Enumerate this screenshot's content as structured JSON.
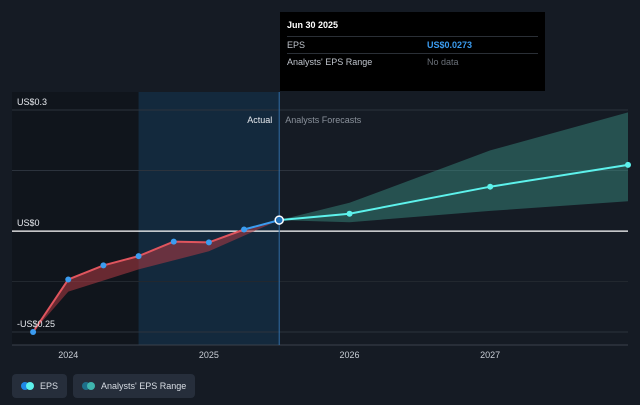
{
  "tooltip": {
    "date": "Jun 30 2025",
    "rows": [
      {
        "label": "EPS",
        "value": "US$0.0273"
      },
      {
        "label": "Analysts' EPS Range",
        "value": "No data"
      }
    ]
  },
  "legend": {
    "eps_label": "EPS",
    "range_label": "Analysts' EPS Range",
    "eps_colors": [
      "#1e88e5",
      "#5df2ec"
    ],
    "range_colors": [
      "#1e6f8a",
      "#3fb5ae"
    ]
  },
  "colors": {
    "actual_line": "#e0555e",
    "actual_recent_line": "#3b9cf0",
    "forecast_line": "#5df2ec",
    "forecast_band": "#3f9e90",
    "actual_band": "#b03a44",
    "highlight": "#163a5a"
  },
  "chart_data": {
    "type": "line",
    "section_labels": {
      "actual": "Actual",
      "forecast": "Analysts Forecasts"
    },
    "y_ticks": [
      {
        "value": 0.3,
        "label": "US$0.3"
      },
      {
        "value": 0.0,
        "label": "US$0"
      },
      {
        "value": -0.25,
        "label": "-US$0.25"
      }
    ],
    "x_ticks": [
      {
        "value": 2024.0,
        "label": "2024"
      },
      {
        "value": 2025.0,
        "label": "2025"
      },
      {
        "value": 2026.0,
        "label": "2026"
      },
      {
        "value": 2027.0,
        "label": "2027"
      }
    ],
    "xlim": [
      2023.6,
      2027.98
    ],
    "ylim": [
      -0.25,
      0.3
    ],
    "divider_x": 2025.5,
    "highlight_range": [
      2024.5,
      2025.5
    ],
    "series": [
      {
        "name": "EPS",
        "segment": "actual",
        "points": [
          [
            2023.75,
            -0.25
          ],
          [
            2024.0,
            -0.12
          ],
          [
            2024.25,
            -0.085
          ],
          [
            2024.5,
            -0.062
          ],
          [
            2024.75,
            -0.026
          ],
          [
            2025.0,
            -0.028
          ],
          [
            2025.25,
            0.004
          ],
          [
            2025.5,
            0.0273
          ]
        ]
      },
      {
        "name": "EPS",
        "segment": "forecast",
        "points": [
          [
            2025.5,
            0.0273
          ],
          [
            2026.0,
            0.043
          ],
          [
            2027.0,
            0.11
          ],
          [
            2027.98,
            0.164
          ]
        ]
      }
    ],
    "bands": [
      {
        "name": "Analysts' EPS Range",
        "segment": "forecast",
        "upper": [
          [
            2025.5,
            0.0273
          ],
          [
            2026.0,
            0.07
          ],
          [
            2027.0,
            0.2
          ],
          [
            2027.98,
            0.294
          ]
        ],
        "lower": [
          [
            2025.5,
            0.0273
          ],
          [
            2026.0,
            0.022
          ],
          [
            2027.0,
            0.05
          ],
          [
            2027.98,
            0.074
          ]
        ]
      },
      {
        "name": "actual-range",
        "segment": "actual",
        "upper": [
          [
            2023.75,
            -0.25
          ],
          [
            2024.0,
            -0.12
          ],
          [
            2024.25,
            -0.085
          ],
          [
            2024.5,
            -0.062
          ],
          [
            2024.75,
            -0.026
          ],
          [
            2025.0,
            -0.028
          ],
          [
            2025.25,
            0.004
          ],
          [
            2025.5,
            0.0273
          ]
        ],
        "lower": [
          [
            2023.75,
            -0.25
          ],
          [
            2024.0,
            -0.15
          ],
          [
            2024.5,
            -0.095
          ],
          [
            2025.0,
            -0.05
          ],
          [
            2025.5,
            0.0273
          ]
        ]
      }
    ]
  }
}
